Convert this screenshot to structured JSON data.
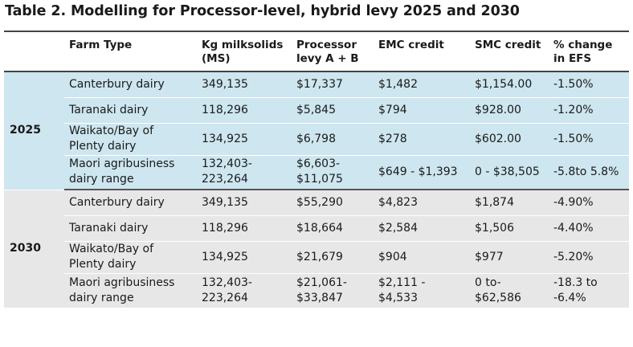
{
  "title": "Table 2. Modelling for Processor-level, hybrid levy 2025 and 2030",
  "headers": {
    "year": "",
    "farm_type": "Farm Type",
    "kg_ms_1": "Kg milksolids",
    "kg_ms_2": "(MS)",
    "levy_1": "Processor",
    "levy_2": "levy  A + B",
    "emc": "EMC credit",
    "smc": "SMC credit",
    "efs_1": "% change",
    "efs_2": "in EFS"
  },
  "groups": [
    {
      "year": "2025",
      "rows": [
        {
          "farm_1": "Canterbury dairy",
          "farm_2": "",
          "kg_1": "349,135",
          "kg_2": "",
          "levy_1": "$17,337",
          "levy_2": "",
          "emc_1": "$1,482",
          "emc_2": "",
          "smc_1": "$1,154.00",
          "smc_2": "",
          "efs_1": "-1.50%",
          "efs_2": ""
        },
        {
          "farm_1": "Taranaki dairy",
          "farm_2": "",
          "kg_1": "118,296",
          "kg_2": "",
          "levy_1": "$5,845",
          "levy_2": "",
          "emc_1": "$794",
          "emc_2": "",
          "smc_1": "$928.00",
          "smc_2": "",
          "efs_1": "-1.20%",
          "efs_2": ""
        },
        {
          "farm_1": "Waikato/Bay of",
          "farm_2": "Plenty dairy",
          "kg_1": "134,925",
          "kg_2": "",
          "levy_1": "$6,798",
          "levy_2": "",
          "emc_1": "$278",
          "emc_2": "",
          "smc_1": "$602.00",
          "smc_2": "",
          "efs_1": "-1.50%",
          "efs_2": ""
        },
        {
          "farm_1": "Maori agribusiness",
          "farm_2": "dairy range",
          "kg_1": "132,403-",
          "kg_2": "223,264",
          "levy_1": "$6,603-",
          "levy_2": "$11,075",
          "emc_1": "$649 - $1,393",
          "emc_2": "",
          "smc_1": "0 - $38,505",
          "smc_2": "",
          "efs_1": "-5.8to 5.8%",
          "efs_2": ""
        }
      ]
    },
    {
      "year": "2030",
      "rows": [
        {
          "farm_1": "Canterbury dairy",
          "farm_2": "",
          "kg_1": "349,135",
          "kg_2": "",
          "levy_1": "$55,290",
          "levy_2": "",
          "emc_1": "$4,823",
          "emc_2": "",
          "smc_1": "$1,874",
          "smc_2": "",
          "efs_1": "-4.90%",
          "efs_2": ""
        },
        {
          "farm_1": "Taranaki dairy",
          "farm_2": "",
          "kg_1": "118,296",
          "kg_2": "",
          "levy_1": "$18,664",
          "levy_2": "",
          "emc_1": "$2,584",
          "emc_2": "",
          "smc_1": "$1,506",
          "smc_2": "",
          "efs_1": "-4.40%",
          "efs_2": ""
        },
        {
          "farm_1": "Waikato/Bay of",
          "farm_2": "Plenty dairy",
          "kg_1": "134,925",
          "kg_2": "",
          "levy_1": "$21,679",
          "levy_2": "",
          "emc_1": "$904",
          "emc_2": "",
          "smc_1": "$977",
          "smc_2": "",
          "efs_1": "-5.20%",
          "efs_2": ""
        },
        {
          "farm_1": "Maori agribusiness",
          "farm_2": "dairy range",
          "kg_1": "132,403-",
          "kg_2": "223,264",
          "levy_1": "$21,061-",
          "levy_2": "$33,847",
          "emc_1": "$2,111 -",
          "emc_2": "$4,533",
          "smc_1": "0 to-",
          "smc_2": "$62,586",
          "efs_1": "-18.3 to",
          "efs_2": "-6.4%"
        }
      ]
    }
  ]
}
